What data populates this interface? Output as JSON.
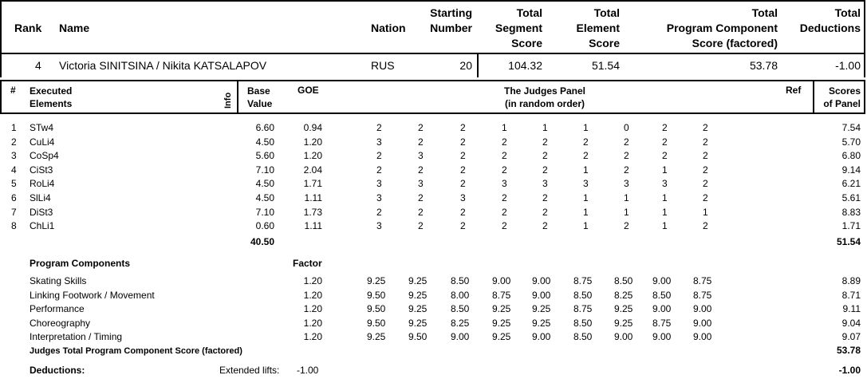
{
  "header": {
    "rank": "Rank",
    "name": "Name",
    "nation": "Nation",
    "starting_number": [
      "Starting",
      "Number"
    ],
    "tss": [
      "Total",
      "Segment",
      "Score"
    ],
    "tes": [
      "Total",
      "Element",
      "Score"
    ],
    "tpcs": [
      "Total",
      "Program Component",
      "Score (factored)"
    ],
    "ded": [
      "Total",
      "Deductions"
    ]
  },
  "skater": {
    "rank": "4",
    "name": "Victoria SINITSINA / Nikita KATSALAPOV",
    "nation": "RUS",
    "starting_number": "20",
    "tss": "104.32",
    "tes": "51.54",
    "tpcs": "53.78",
    "ded": "-1.00"
  },
  "elements_header": {
    "num": "#",
    "executed": [
      "Executed",
      "Elements"
    ],
    "info": "Info",
    "base": [
      "Base",
      "Value"
    ],
    "goe": "GOE",
    "panel": [
      "The Judges Panel",
      "(in random order)"
    ],
    "ref": "Ref",
    "scores": [
      "Scores",
      "of Panel"
    ]
  },
  "elements": [
    {
      "n": "1",
      "name": "STw4",
      "base": "6.60",
      "goe": "0.94",
      "j": [
        "2",
        "2",
        "2",
        "1",
        "1",
        "1",
        "0",
        "2",
        "2"
      ],
      "score": "7.54"
    },
    {
      "n": "2",
      "name": "CuLi4",
      "base": "4.50",
      "goe": "1.20",
      "j": [
        "3",
        "2",
        "2",
        "2",
        "2",
        "2",
        "2",
        "2",
        "2"
      ],
      "score": "5.70"
    },
    {
      "n": "3",
      "name": "CoSp4",
      "base": "5.60",
      "goe": "1.20",
      "j": [
        "2",
        "3",
        "2",
        "2",
        "2",
        "2",
        "2",
        "2",
        "2"
      ],
      "score": "6.80"
    },
    {
      "n": "4",
      "name": "CiSt3",
      "base": "7.10",
      "goe": "2.04",
      "j": [
        "2",
        "2",
        "2",
        "2",
        "2",
        "1",
        "2",
        "1",
        "2"
      ],
      "score": "9.14"
    },
    {
      "n": "5",
      "name": "RoLi4",
      "base": "4.50",
      "goe": "1.71",
      "j": [
        "3",
        "3",
        "2",
        "3",
        "3",
        "3",
        "3",
        "3",
        "2"
      ],
      "score": "6.21"
    },
    {
      "n": "6",
      "name": "SlLi4",
      "base": "4.50",
      "goe": "1.11",
      "j": [
        "3",
        "2",
        "3",
        "2",
        "2",
        "1",
        "1",
        "1",
        "2"
      ],
      "score": "5.61"
    },
    {
      "n": "7",
      "name": "DiSt3",
      "base": "7.10",
      "goe": "1.73",
      "j": [
        "2",
        "2",
        "2",
        "2",
        "2",
        "1",
        "1",
        "1",
        "1"
      ],
      "score": "8.83"
    },
    {
      "n": "8",
      "name": "ChLi1",
      "base": "0.60",
      "goe": "1.11",
      "j": [
        "3",
        "2",
        "2",
        "2",
        "2",
        "1",
        "2",
        "1",
        "2"
      ],
      "score": "1.71"
    }
  ],
  "elements_total_base": "40.50",
  "elements_total_score": "51.54",
  "pc_header": {
    "title": "Program Components",
    "factor": "Factor"
  },
  "components": [
    {
      "name": "Skating Skills",
      "factor": "1.20",
      "j": [
        "9.25",
        "9.25",
        "8.50",
        "9.00",
        "9.00",
        "8.75",
        "8.50",
        "9.00",
        "8.75"
      ],
      "score": "8.89"
    },
    {
      "name": "Linking Footwork / Movement",
      "factor": "1.20",
      "j": [
        "9.50",
        "9.25",
        "8.00",
        "8.75",
        "9.00",
        "8.50",
        "8.25",
        "8.50",
        "8.75"
      ],
      "score": "8.71"
    },
    {
      "name": "Performance",
      "factor": "1.20",
      "j": [
        "9.50",
        "9.25",
        "8.50",
        "9.25",
        "9.25",
        "8.75",
        "9.25",
        "9.00",
        "9.00"
      ],
      "score": "9.11"
    },
    {
      "name": "Choreography",
      "factor": "1.20",
      "j": [
        "9.50",
        "9.25",
        "8.25",
        "9.25",
        "9.25",
        "8.50",
        "9.25",
        "8.75",
        "9.00"
      ],
      "score": "9.04"
    },
    {
      "name": "Interpretation / Timing",
      "factor": "1.20",
      "j": [
        "9.25",
        "9.50",
        "9.00",
        "9.25",
        "9.00",
        "8.50",
        "9.00",
        "9.00",
        "9.00"
      ],
      "score": "9.07"
    }
  ],
  "pc_total_label": "Judges Total Program Component Score (factored)",
  "pc_total": "53.78",
  "deductions": {
    "label": "Deductions:",
    "item": "Extended lifts:",
    "item_value": "-1.00",
    "total": "-1.00"
  }
}
